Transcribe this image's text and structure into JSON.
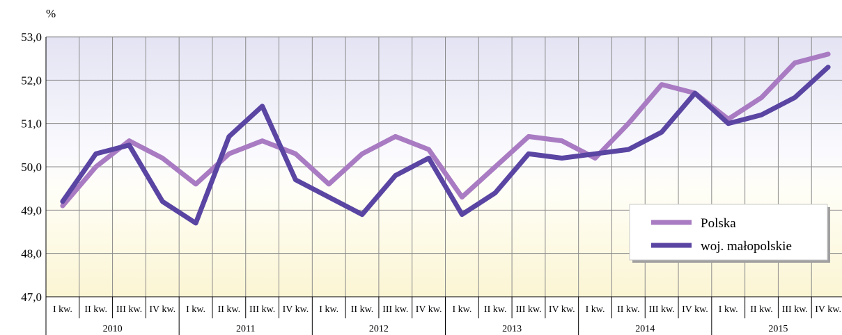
{
  "chart_data": {
    "type": "line",
    "ylabel": "%",
    "ylim": [
      47.0,
      53.0
    ],
    "y_ticks": [
      "47,0",
      "48,0",
      "49,0",
      "50,0",
      "51,0",
      "52,0",
      "53,0"
    ],
    "quarters": [
      "I kw.",
      "II kw.",
      "III kw.",
      "IV kw.",
      "I kw.",
      "II kw.",
      "III kw.",
      "IV kw.",
      "I kw.",
      "II kw.",
      "III kw.",
      "IV kw.",
      "I kw.",
      "II kw.",
      "III kw.",
      "IV kw.",
      "I kw.",
      "II kw.",
      "III kw.",
      "IV kw.",
      "I kw.",
      "II kw.",
      "III kw.",
      "IV kw."
    ],
    "years": [
      "2010",
      "2011",
      "2012",
      "2013",
      "2014",
      "2015"
    ],
    "grid": true,
    "legend_position": "lower-right",
    "series": [
      {
        "name": "Polska",
        "color": "#A97BC2",
        "values": [
          49.1,
          50.0,
          50.6,
          50.2,
          49.6,
          50.3,
          50.6,
          50.3,
          49.6,
          50.3,
          50.7,
          50.4,
          49.3,
          50.0,
          50.7,
          50.6,
          50.2,
          51.0,
          51.9,
          51.7,
          51.1,
          51.6,
          52.4,
          52.6
        ]
      },
      {
        "name": "woj. małopolskie",
        "color": "#5A45A3",
        "values": [
          49.2,
          50.3,
          50.5,
          49.2,
          48.7,
          50.7,
          51.4,
          49.7,
          49.3,
          48.9,
          49.8,
          50.2,
          48.9,
          49.4,
          50.3,
          50.2,
          50.3,
          50.4,
          50.8,
          51.7,
          51.0,
          51.2,
          51.6,
          52.3
        ]
      }
    ]
  }
}
